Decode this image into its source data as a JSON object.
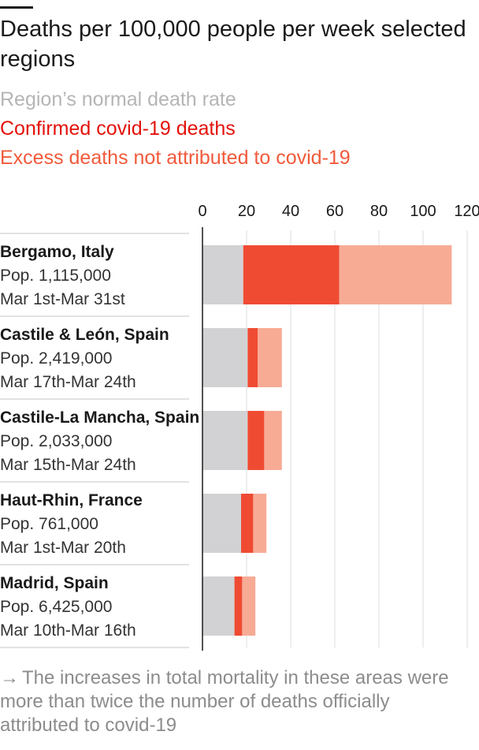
{
  "title": "Deaths per 100,000 people per week selected regions",
  "legend": [
    {
      "label": "Region’s normal death rate",
      "color": "#b5b5b5"
    },
    {
      "label": "Confirmed covid-19 deaths",
      "color": "#e3120b"
    },
    {
      "label": "Excess deaths not attributed to covid-19",
      "color": "#f15a3b"
    }
  ],
  "colors": {
    "normal_bar": "#d2d2d4",
    "covid_bar": "#ef4b33",
    "excess_bar": "#f7ab95",
    "grid": "#dedede",
    "axis": "#1a1a1a",
    "separator": "#d8d8d8",
    "label": "#1a1a1a"
  },
  "chart_data": {
    "type": "bar",
    "orientation": "horizontal",
    "stacked": true,
    "xlim": [
      0,
      120
    ],
    "xticks": [
      0,
      20,
      40,
      60,
      80,
      100,
      120
    ],
    "grid": true,
    "xlabel": "",
    "ylabel": "",
    "categories": [
      {
        "name": "Bergamo, Italy",
        "population": "Pop. 1,115,000",
        "period": "Mar 1st-Mar 31st"
      },
      {
        "name": "Castile & León, Spain",
        "population": "Pop. 2,419,000",
        "period": "Mar 17th-Mar 24th"
      },
      {
        "name": "Castile-La Mancha, Spain",
        "population": "Pop. 2,033,000",
        "period": "Mar 15th-Mar 24th"
      },
      {
        "name": "Haut-Rhin, France",
        "population": "Pop. 761,000",
        "period": "Mar 1st-Mar 20th"
      },
      {
        "name": "Madrid, Spain",
        "population": "Pop.  6,425,000",
        "period": "Mar 10th-Mar 16th"
      }
    ],
    "series": [
      {
        "name": "Region’s normal death rate",
        "values": [
          18.5,
          20.5,
          20.5,
          17.5,
          14.5
        ]
      },
      {
        "name": "Confirmed covid-19 deaths",
        "values": [
          43.5,
          4.5,
          7.5,
          5.5,
          3.5
        ]
      },
      {
        "name": "Excess deaths not attributed to covid-19",
        "values": [
          51,
          11,
          8,
          6,
          6
        ]
      }
    ]
  },
  "note": {
    "arrow": "→",
    "text": "The increases in total mortality in these areas were more than twice the number of deaths officially attributed to covid-19"
  }
}
